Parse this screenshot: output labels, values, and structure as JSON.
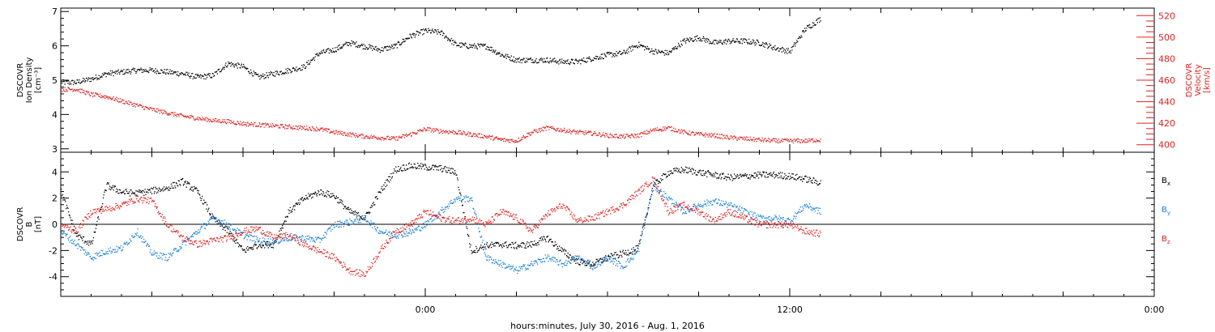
{
  "xlabel": "hours:minutes, July 30, 2016 - Aug.  1, 2016",
  "x_tick_labels": [
    "0:00",
    "12:00",
    "0:00"
  ],
  "chart_data": [
    {
      "type": "scatter",
      "x_unit": "hours since 2016-07-30 12:00",
      "xlim": [
        0,
        36
      ],
      "ylabel_left": [
        "DSCOVR",
        "Ion Density",
        "[cm⁻³]"
      ],
      "ylabel_right": [
        "DSCOVR",
        "Velocity",
        "[km/s]"
      ],
      "left_axis": {
        "ylim": [
          2.9,
          7.1
        ],
        "ticks": [
          3,
          4,
          5,
          6,
          7
        ]
      },
      "right_axis": {
        "ylim": [
          393,
          527
        ],
        "ticks": [
          400,
          420,
          440,
          460,
          480,
          500,
          520
        ]
      },
      "series": [
        {
          "color": "#000000",
          "axis": "left",
          "x": [
            0,
            0.5,
            1,
            1.5,
            2,
            2.5,
            3,
            3.5,
            4,
            4.5,
            5,
            5.5,
            6,
            6.5,
            7,
            7.5,
            8,
            8.5,
            9,
            9.5,
            10,
            10.5,
            11,
            11.5,
            12,
            12.5,
            13,
            13.5,
            14,
            14.5,
            15,
            15.5,
            16,
            16.5,
            17,
            17.5,
            18,
            18.5,
            19,
            19.5,
            20,
            20.5,
            21,
            21.5,
            22,
            22.5,
            23,
            23.5,
            24,
            24.5,
            25
          ],
          "y": [
            4.95,
            4.95,
            5.05,
            5.2,
            5.25,
            5.3,
            5.3,
            5.25,
            5.2,
            5.1,
            5.15,
            5.5,
            5.4,
            5.1,
            5.2,
            5.3,
            5.4,
            5.8,
            5.9,
            6.1,
            6.0,
            5.9,
            6.0,
            6.3,
            6.45,
            6.4,
            6.05,
            6.0,
            6.0,
            5.75,
            5.6,
            5.6,
            5.6,
            5.55,
            5.55,
            5.65,
            5.75,
            5.8,
            6.05,
            5.85,
            5.8,
            6.15,
            6.25,
            6.1,
            6.15,
            6.15,
            6.1,
            5.95,
            5.85,
            6.5,
            6.8
          ]
        },
        {
          "color": "#e02020",
          "axis": "right",
          "x": [
            0,
            0.5,
            1,
            1.5,
            2,
            2.5,
            3,
            3.5,
            4,
            4.5,
            5,
            5.5,
            6,
            6.5,
            7,
            7.5,
            8,
            8.5,
            9,
            9.5,
            10,
            10.5,
            11,
            11.5,
            12,
            12.5,
            13,
            13.5,
            14,
            14.5,
            15,
            15.5,
            16,
            16.5,
            17,
            17.5,
            18,
            18.5,
            19,
            19.5,
            20,
            20.5,
            21,
            21.5,
            22,
            22.5,
            23,
            23.5,
            24,
            24.5,
            25
          ],
          "y": [
            452,
            452,
            447,
            445,
            441,
            437,
            433,
            430,
            427,
            425,
            423,
            422,
            420,
            419,
            418,
            417,
            416,
            415,
            412,
            410,
            408,
            407,
            406,
            410,
            415,
            413,
            412,
            410,
            408,
            405,
            404,
            412,
            416,
            414,
            412,
            411,
            409,
            408,
            409,
            414,
            416,
            412,
            410,
            409,
            407,
            406,
            405,
            404,
            404,
            404,
            405
          ]
        }
      ]
    },
    {
      "type": "scatter",
      "x_unit": "hours since 2016-07-30 12:00",
      "xlim": [
        0,
        36
      ],
      "ylabel_left": [
        "DSCOVR",
        "B",
        "[nT]"
      ],
      "ylim": [
        -5.5,
        5.5
      ],
      "ticks": [
        -4,
        -2,
        0,
        2,
        4
      ],
      "zero_line": true,
      "series": [
        {
          "name": "B",
          "sub": "x",
          "color": "#000000",
          "x": [
            0,
            0.5,
            1,
            1.5,
            2,
            2.5,
            3,
            3.5,
            4,
            4.5,
            5,
            5.5,
            6,
            6.5,
            7,
            7.5,
            8,
            8.5,
            9,
            9.5,
            10,
            10.5,
            11,
            11.5,
            12,
            12.5,
            13,
            13.5,
            14,
            14.5,
            15,
            15.5,
            16,
            16.5,
            17,
            17.5,
            18,
            18.5,
            19,
            19.5,
            20,
            20.5,
            21,
            21.5,
            22,
            22.5,
            23,
            23.5,
            24,
            24.5,
            25
          ],
          "y": [
            2.5,
            -0.8,
            -1.5,
            3.0,
            2.5,
            2.4,
            2.6,
            2.8,
            3.3,
            2.5,
            0.5,
            -0.5,
            -2.0,
            -1.5,
            -1.5,
            1.0,
            2.0,
            2.5,
            2.2,
            1.0,
            0.5,
            2.5,
            4.2,
            4.5,
            4.4,
            4.3,
            4.0,
            -2.0,
            -1.6,
            -1.5,
            -1.6,
            -1.5,
            -1.0,
            -2.0,
            -2.8,
            -3.0,
            -2.5,
            -2.2,
            -1.8,
            3.0,
            4.0,
            4.2,
            4.0,
            3.8,
            3.6,
            3.7,
            3.8,
            3.8,
            3.7,
            3.5,
            3.2
          ]
        },
        {
          "name": "B",
          "sub": "y",
          "color": "#1a7fd4",
          "x": [
            0,
            0.5,
            1,
            1.5,
            2,
            2.5,
            3,
            3.5,
            4,
            4.5,
            5,
            5.5,
            6,
            6.5,
            7,
            7.5,
            8,
            8.5,
            9,
            9.5,
            10,
            10.5,
            11,
            11.5,
            12,
            12.5,
            13,
            13.5,
            14,
            14.5,
            15,
            15.5,
            16,
            16.5,
            17,
            17.5,
            18,
            18.5,
            19,
            19.5,
            20,
            20.5,
            21,
            21.5,
            22,
            22.5,
            23,
            23.5,
            24,
            24.5,
            25
          ],
          "y": [
            -0.5,
            -1.5,
            -2.5,
            -2.0,
            -1.8,
            -0.5,
            -2.2,
            -2.5,
            -1.5,
            -0.5,
            0.5,
            0.0,
            -0.8,
            -1.2,
            -1.3,
            -1.0,
            -1.0,
            -1.2,
            0.0,
            0.2,
            0.5,
            -0.5,
            -0.8,
            -0.6,
            0.0,
            1.0,
            2.0,
            2.0,
            -2.5,
            -3.0,
            -3.5,
            -3.0,
            -2.5,
            -3.0,
            -2.5,
            -3.2,
            -2.5,
            -3.2,
            -2.0,
            3.0,
            2.0,
            1.0,
            1.5,
            1.8,
            1.5,
            1.0,
            0.5,
            0.5,
            0.3,
            1.5,
            1.0
          ]
        },
        {
          "name": "B",
          "sub": "z",
          "color": "#e02020",
          "x": [
            0,
            0.5,
            1,
            1.5,
            2,
            2.5,
            3,
            3.5,
            4,
            4.5,
            5,
            5.5,
            6,
            6.5,
            7,
            7.5,
            8,
            8.5,
            9,
            9.5,
            10,
            10.5,
            11,
            11.5,
            12,
            12.5,
            13,
            13.5,
            14,
            14.5,
            15,
            15.5,
            16,
            16.5,
            17,
            17.5,
            18,
            18.5,
            19,
            19.5,
            20,
            20.5,
            21,
            21.5,
            22,
            22.5,
            23,
            23.5,
            24,
            24.5,
            25
          ],
          "y": [
            0.0,
            -0.5,
            1.0,
            1.2,
            1.5,
            2.0,
            1.8,
            0.0,
            -1.0,
            -1.5,
            -1.2,
            -1.0,
            -0.5,
            -0.3,
            -1.0,
            -0.8,
            -1.5,
            -2.0,
            -2.5,
            -3.5,
            -3.8,
            -2.0,
            -0.5,
            0.0,
            1.0,
            0.5,
            0.3,
            0.5,
            0.0,
            1.0,
            0.5,
            -0.5,
            0.8,
            1.5,
            0.3,
            0.5,
            1.0,
            1.5,
            2.5,
            3.5,
            1.0,
            1.5,
            1.0,
            0.3,
            1.0,
            0.5,
            0.0,
            0.0,
            0.0,
            -0.5,
            -0.7
          ]
        }
      ]
    }
  ]
}
